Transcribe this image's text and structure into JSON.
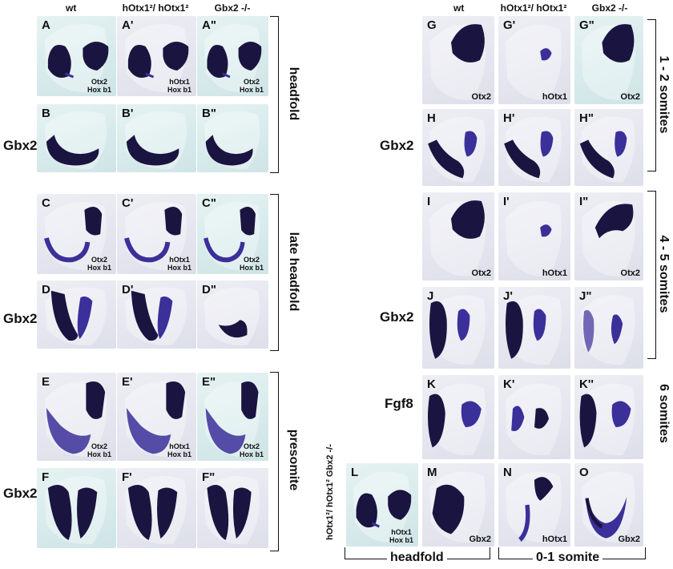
{
  "columns_left": [
    "wt",
    "hOtx1²/ hOtx1²",
    "Gbx2 -/-"
  ],
  "columns_right": [
    "wt",
    "hOtx1²/ hOtx1²",
    "Gbx2 -/-"
  ],
  "row_labels": {
    "B": "Gbx2",
    "D": "Gbx2",
    "F": "Gbx2",
    "H": "Gbx2",
    "J": "Gbx2",
    "K": "Fgf8"
  },
  "stages": {
    "headfold": "headfold",
    "late_headfold": "late headfold",
    "presomite": "presomite",
    "s12": "1 - 2 somites",
    "s45": "4 - 5  somites",
    "s6": "6 somites",
    "bottom_headfold": "headfold",
    "bottom_01": "0-1 somite"
  },
  "genotype_L": "hOtx1²/ hOtx1² Gbx2 -/-",
  "panels": [
    {
      "id": "A",
      "label": "A",
      "gene1": "Otx2",
      "gene2": "Hox b1"
    },
    {
      "id": "A1",
      "label": "A'",
      "gene1": "hOtx1",
      "gene2": "Hox b1"
    },
    {
      "id": "A2",
      "label": "A\"",
      "gene1": "Otx2",
      "gene2": "Hox b1"
    },
    {
      "id": "B",
      "label": "B",
      "gene1": "",
      "gene2": ""
    },
    {
      "id": "B1",
      "label": "B'",
      "gene1": "",
      "gene2": ""
    },
    {
      "id": "B2",
      "label": "B\"",
      "gene1": "",
      "gene2": ""
    },
    {
      "id": "C",
      "label": "C",
      "gene1": "Otx2",
      "gene2": "Hox b1"
    },
    {
      "id": "C1",
      "label": "C'",
      "gene1": "hOtx1",
      "gene2": "Hox b1"
    },
    {
      "id": "C2",
      "label": "C\"",
      "gene1": "Otx2",
      "gene2": "Hox b1"
    },
    {
      "id": "D",
      "label": "D",
      "gene1": "",
      "gene2": ""
    },
    {
      "id": "D1",
      "label": "D'",
      "gene1": "",
      "gene2": ""
    },
    {
      "id": "D2",
      "label": "D\"",
      "gene1": "",
      "gene2": ""
    },
    {
      "id": "E",
      "label": "E",
      "gene1": "Otx2",
      "gene2": "Hox b1"
    },
    {
      "id": "E1",
      "label": "E'",
      "gene1": "hOtx1",
      "gene2": "Hox b1"
    },
    {
      "id": "E2",
      "label": "E\"",
      "gene1": "Otx2",
      "gene2": "Hox b1"
    },
    {
      "id": "F",
      "label": "F",
      "gene1": "",
      "gene2": ""
    },
    {
      "id": "F1",
      "label": "F'",
      "gene1": "",
      "gene2": ""
    },
    {
      "id": "F2",
      "label": "F\"",
      "gene1": "",
      "gene2": ""
    },
    {
      "id": "G",
      "label": "G",
      "gene1": "Otx2",
      "gene2": ""
    },
    {
      "id": "G1",
      "label": "G'",
      "gene1": "hOtx1",
      "gene2": ""
    },
    {
      "id": "G2",
      "label": "G\"",
      "gene1": "Otx2",
      "gene2": ""
    },
    {
      "id": "H",
      "label": "H",
      "gene1": "",
      "gene2": ""
    },
    {
      "id": "H1",
      "label": "H'",
      "gene1": "",
      "gene2": ""
    },
    {
      "id": "H2",
      "label": "H\"",
      "gene1": "",
      "gene2": ""
    },
    {
      "id": "I",
      "label": "I",
      "gene1": "Otx2",
      "gene2": ""
    },
    {
      "id": "I1",
      "label": "I'",
      "gene1": "hOtx1",
      "gene2": ""
    },
    {
      "id": "I2",
      "label": "I\"",
      "gene1": "Otx2",
      "gene2": ""
    },
    {
      "id": "J",
      "label": "J",
      "gene1": "",
      "gene2": ""
    },
    {
      "id": "J1",
      "label": "J'",
      "gene1": "",
      "gene2": ""
    },
    {
      "id": "J2",
      "label": "J\"",
      "gene1": "",
      "gene2": ""
    },
    {
      "id": "K",
      "label": "K",
      "gene1": "",
      "gene2": ""
    },
    {
      "id": "K1",
      "label": "K'",
      "gene1": "",
      "gene2": ""
    },
    {
      "id": "K2",
      "label": "K''",
      "gene1": "",
      "gene2": ""
    },
    {
      "id": "L",
      "label": "L",
      "gene1": "hOtx1",
      "gene2": "Hox b1"
    },
    {
      "id": "M",
      "label": "M",
      "gene1": "Gbx2",
      "gene2": ""
    },
    {
      "id": "N",
      "label": "N",
      "gene1": "hOtx1",
      "gene2": ""
    },
    {
      "id": "O",
      "label": "O",
      "gene1": "Gbx2",
      "gene2": ""
    }
  ],
  "colors": {
    "stain": "#1a1440",
    "stain_mid": "#3b2f9a",
    "bg_teal": "#dcecec",
    "bg_lilac": "#e6e7f0"
  }
}
